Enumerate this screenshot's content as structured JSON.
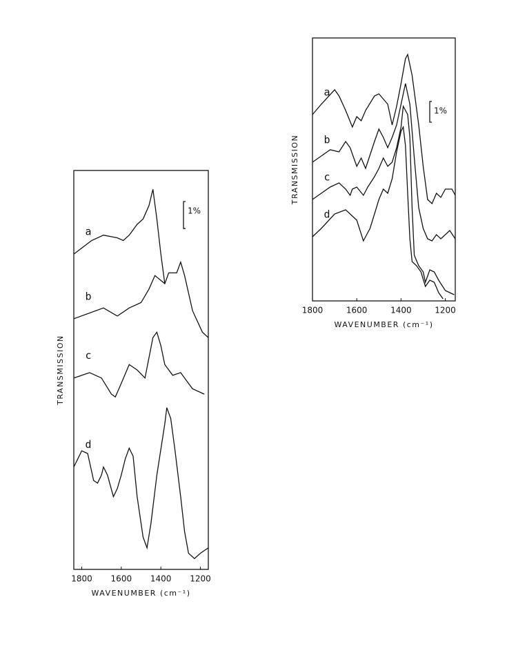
{
  "chart_data": [
    {
      "type": "line",
      "x_label": "WAVENUMBER (cm⁻¹)",
      "y_label": "TRANSMISSION",
      "xlim": [
        1840,
        1160
      ],
      "ylim": [
        0,
        14.8
      ],
      "xticks": [
        1800,
        1600,
        1400,
        1200
      ],
      "scale_bar": {
        "value": 1,
        "label": "1%"
      },
      "series": [
        {
          "name": "a",
          "color": "#111",
          "x": [
            1840,
            1750,
            1690,
            1620,
            1590,
            1560,
            1520,
            1490,
            1460,
            1440,
            1420,
            1400,
            1380
          ],
          "values": [
            11.7,
            12.2,
            12.4,
            12.3,
            12.2,
            12.4,
            12.8,
            13.0,
            13.5,
            14.1,
            13.0,
            11.7,
            10.6
          ]
        },
        {
          "name": "b",
          "color": "#111",
          "x": [
            1840,
            1690,
            1620,
            1560,
            1500,
            1460,
            1430,
            1380,
            1360,
            1320,
            1300,
            1280,
            1240,
            1190,
            1160
          ],
          "values": [
            9.3,
            9.7,
            9.4,
            9.7,
            9.9,
            10.4,
            10.9,
            10.6,
            11.0,
            11.0,
            11.4,
            10.9,
            9.6,
            8.8,
            8.6
          ]
        },
        {
          "name": "c",
          "color": "#111",
          "x": [
            1840,
            1760,
            1700,
            1650,
            1630,
            1600,
            1560,
            1520,
            1480,
            1440,
            1420,
            1400,
            1380,
            1340,
            1300,
            1280,
            1240,
            1180
          ],
          "values": [
            7.1,
            7.3,
            7.1,
            6.5,
            6.4,
            6.9,
            7.6,
            7.4,
            7.1,
            8.6,
            8.8,
            8.3,
            7.6,
            7.2,
            7.3,
            7.1,
            6.7,
            6.5
          ]
        },
        {
          "name": "d",
          "color": "#111",
          "x": [
            1840,
            1800,
            1770,
            1740,
            1720,
            1700,
            1690,
            1670,
            1640,
            1620,
            1600,
            1580,
            1560,
            1540,
            1520,
            1490,
            1470,
            1450,
            1420,
            1380,
            1370,
            1350,
            1330,
            1300,
            1280,
            1260,
            1230,
            1200,
            1160
          ],
          "values": [
            3.8,
            4.4,
            4.3,
            3.3,
            3.2,
            3.5,
            3.8,
            3.5,
            2.7,
            3.0,
            3.5,
            4.1,
            4.5,
            4.2,
            2.7,
            1.2,
            0.8,
            1.7,
            3.5,
            5.4,
            6.0,
            5.6,
            4.5,
            2.7,
            1.4,
            0.6,
            0.4,
            0.6,
            0.8
          ]
        }
      ]
    },
    {
      "type": "line",
      "x_label": "WAVENUMBER (cm⁻¹)",
      "y_label": "TRANSMISSION",
      "xlim": [
        1800,
        1155
      ],
      "ylim": [
        0,
        12.7
      ],
      "xticks": [
        1800,
        1600,
        1400,
        1200
      ],
      "scale_bar": {
        "value": 1,
        "label": "1%"
      },
      "series": [
        {
          "name": "a",
          "color": "#111",
          "x": [
            1800,
            1760,
            1700,
            1680,
            1650,
            1620,
            1600,
            1580,
            1560,
            1520,
            1500,
            1460,
            1440,
            1420,
            1400,
            1380,
            1370,
            1350,
            1320,
            1300,
            1280,
            1260,
            1240,
            1220,
            1200,
            1170,
            1155
          ],
          "values": [
            9.0,
            9.5,
            10.2,
            9.9,
            9.2,
            8.4,
            8.9,
            8.7,
            9.2,
            9.9,
            10.0,
            9.5,
            8.5,
            9.4,
            10.5,
            11.7,
            11.9,
            10.9,
            8.5,
            6.5,
            4.9,
            4.7,
            5.2,
            5.0,
            5.4,
            5.4,
            5.1
          ]
        },
        {
          "name": "b",
          "color": "#111",
          "x": [
            1800,
            1760,
            1720,
            1680,
            1650,
            1630,
            1600,
            1580,
            1560,
            1520,
            1500,
            1480,
            1460,
            1440,
            1420,
            1400,
            1380,
            1360,
            1340,
            1320,
            1300,
            1280,
            1260,
            1240,
            1220,
            1200,
            1180,
            1155
          ],
          "values": [
            6.7,
            7.0,
            7.3,
            7.2,
            7.7,
            7.4,
            6.5,
            6.9,
            6.4,
            7.7,
            8.3,
            7.9,
            7.4,
            7.9,
            8.5,
            9.5,
            10.5,
            9.5,
            6.9,
            4.5,
            3.5,
            3.0,
            2.9,
            3.2,
            3.0,
            3.2,
            3.4,
            3.0
          ]
        },
        {
          "name": "c",
          "color": "#111",
          "x": [
            1800,
            1760,
            1720,
            1680,
            1650,
            1630,
            1620,
            1600,
            1570,
            1550,
            1520,
            1500,
            1480,
            1460,
            1440,
            1420,
            1400,
            1390,
            1370,
            1360,
            1350,
            1340,
            1320,
            1300,
            1290,
            1270,
            1250,
            1230,
            1200,
            1180,
            1160
          ],
          "values": [
            4.9,
            5.2,
            5.5,
            5.7,
            5.4,
            5.1,
            5.4,
            5.5,
            5.1,
            5.5,
            6.0,
            6.4,
            6.9,
            6.5,
            6.7,
            7.4,
            8.4,
            9.4,
            9.0,
            7.9,
            4.5,
            2.2,
            1.7,
            1.4,
            0.9,
            1.5,
            1.4,
            1.0,
            0.5,
            0.4,
            0.3
          ]
        },
        {
          "name": "d",
          "color": "#111",
          "x": [
            1800,
            1760,
            1700,
            1650,
            1600,
            1570,
            1540,
            1520,
            1500,
            1480,
            1460,
            1440,
            1420,
            1400,
            1390,
            1380,
            1370,
            1360,
            1350,
            1330,
            1310,
            1290,
            1270,
            1250,
            1230,
            1210
          ],
          "values": [
            3.1,
            3.5,
            4.2,
            4.4,
            3.9,
            2.9,
            3.5,
            4.2,
            4.9,
            5.4,
            5.2,
            5.9,
            7.2,
            8.2,
            8.4,
            7.5,
            5.2,
            3.0,
            1.9,
            1.7,
            1.4,
            0.7,
            1.0,
            0.9,
            0.4,
            0.1
          ]
        }
      ]
    }
  ]
}
